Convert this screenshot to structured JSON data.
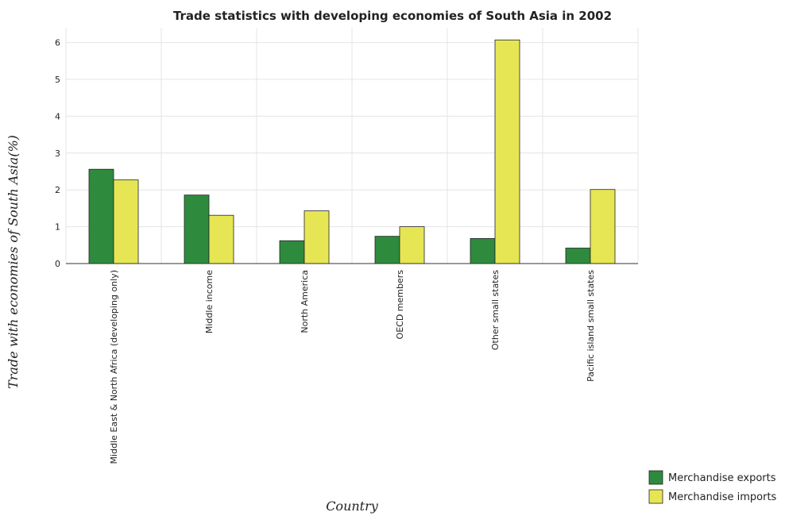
{
  "chart_data": {
    "type": "bar",
    "title": "Trade statistics with developing economies of South Asia in 2002",
    "xlabel": "Country",
    "ylabel": "Trade with economies of South Asia(%)",
    "categories": [
      "Middle East & North Africa (developing only)",
      "Middle income",
      "North America",
      "OECD members",
      "Other small states",
      "Pacific island small states"
    ],
    "series": [
      {
        "name": "Merchandise exports",
        "color": "#2e8b3e",
        "values": [
          2.56,
          1.86,
          0.62,
          0.74,
          0.68,
          0.42
        ]
      },
      {
        "name": "Merchandise imports",
        "color": "#e6e655",
        "values": [
          2.27,
          1.31,
          1.43,
          1.0,
          6.07,
          2.01
        ]
      }
    ],
    "ylim": [
      0,
      6.4
    ],
    "yticks": [
      0,
      1,
      2,
      3,
      4,
      5,
      6
    ],
    "grid": true,
    "legend_position": "bottom-right"
  }
}
